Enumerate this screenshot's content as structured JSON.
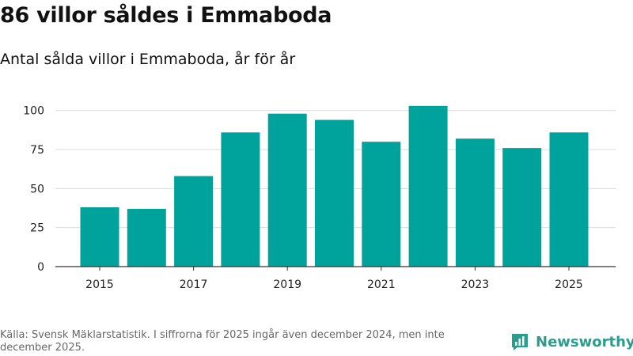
{
  "header": {
    "title": "86 villor såldes i Emmaboda",
    "subtitle": "Antal sålda villor i Emmaboda, år för år"
  },
  "footer": {
    "source": "Källa: Svensk Mäklarstatistik. I siffrorna för 2025 ingår även december 2024, men inte december 2025."
  },
  "brand": {
    "name": "Newsworthy",
    "icon": "bar-chart-speech-bubble-icon"
  },
  "colors": {
    "bar": "#00a39b",
    "grid": "#d9d9d9",
    "axis": "#333333",
    "brand": "#2a9d8f"
  },
  "chart_data": {
    "type": "bar",
    "title": "86 villor såldes i Emmaboda",
    "subtitle": "Antal sålda villor i Emmaboda, år för år",
    "xlabel": "",
    "ylabel": "",
    "categories": [
      "2015",
      "2016",
      "2017",
      "2018",
      "2019",
      "2020",
      "2021",
      "2022",
      "2023",
      "2024",
      "2025"
    ],
    "values": [
      38,
      37,
      58,
      86,
      98,
      94,
      80,
      103,
      82,
      76,
      86
    ],
    "x_tick_labels": [
      "2015",
      "2017",
      "2019",
      "2021",
      "2023",
      "2025"
    ],
    "y_ticks": [
      0,
      25,
      50,
      75,
      100
    ],
    "ylim": [
      0,
      110
    ],
    "grid": true,
    "legend": "none"
  }
}
